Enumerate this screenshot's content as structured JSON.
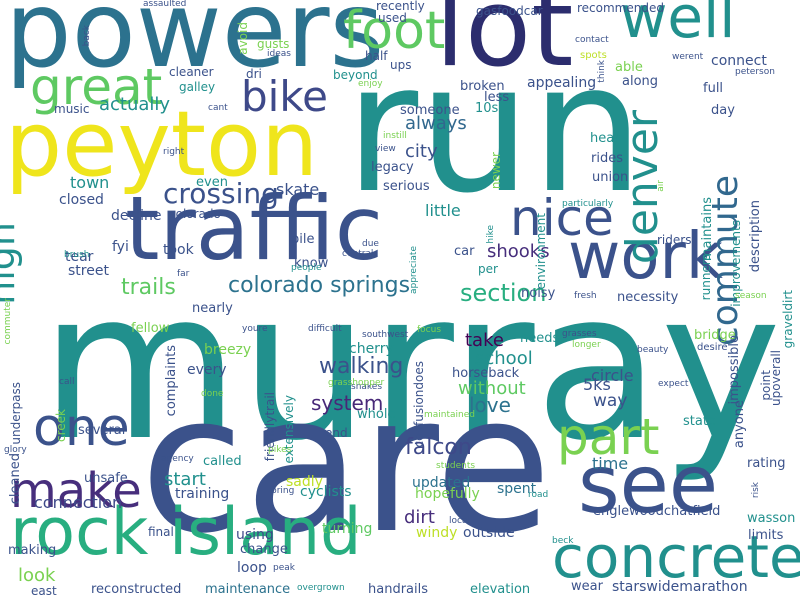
{
  "words": [
    {
      "text": "murray",
      "color": "#21908d"
    },
    {
      "text": "care",
      "color": "#3b528b"
    },
    {
      "text": "run",
      "color": "#21908d"
    },
    {
      "text": "lot",
      "color": "#2c2d6e"
    },
    {
      "text": "powers",
      "color": "#2c728e"
    },
    {
      "text": "peyton",
      "color": "#efe51c"
    },
    {
      "text": "traffic",
      "color": "#3b528b"
    },
    {
      "text": "rock island",
      "color": "#28ae80"
    },
    {
      "text": "see",
      "color": "#3b528b"
    },
    {
      "text": "concrete",
      "color": "#21908d"
    },
    {
      "text": "work",
      "color": "#3b528b"
    },
    {
      "text": "well",
      "color": "#21908d"
    },
    {
      "text": "foot",
      "color": "#5ec962"
    },
    {
      "text": "part",
      "color": "#7ad151"
    },
    {
      "text": "make",
      "color": "#472e7c"
    },
    {
      "text": "one",
      "color": "#3b528b"
    },
    {
      "text": "nice",
      "color": "#3b528b"
    },
    {
      "text": "great",
      "color": "#5ec962"
    },
    {
      "text": "bike",
      "color": "#3e4989"
    },
    {
      "text": "denver",
      "color": "#21908d"
    },
    {
      "text": "commute",
      "color": "#31688e"
    },
    {
      "text": "high",
      "color": "#21908d"
    },
    {
      "text": "crossing",
      "color": "#3b528b"
    },
    {
      "text": "colorado springs",
      "color": "#2c728e"
    },
    {
      "text": "section",
      "color": "#28ae80"
    },
    {
      "text": "falcon",
      "color": "#3e4989"
    },
    {
      "text": "trails",
      "color": "#5ec962"
    },
    {
      "text": "walking",
      "color": "#3b528b"
    },
    {
      "text": "system",
      "color": "#482878"
    },
    {
      "text": "love",
      "color": "#2c728e"
    },
    {
      "text": "school",
      "color": "#21908d"
    },
    {
      "text": "take",
      "color": "#440154"
    },
    {
      "text": "without",
      "color": "#5ec962"
    },
    {
      "text": "start",
      "color": "#21908d"
    },
    {
      "text": "connection",
      "color": "#3e4989"
    },
    {
      "text": "dirt",
      "color": "#472e7c"
    },
    {
      "text": "shooks",
      "color": "#472e7c"
    },
    {
      "text": "city",
      "color": "#3b528b"
    },
    {
      "text": "always",
      "color": "#31688e"
    },
    {
      "text": "actually",
      "color": "#21908d"
    },
    {
      "text": "little",
      "color": "#21908d"
    },
    {
      "text": "look",
      "color": "#7ad151"
    },
    {
      "text": "way",
      "color": "#3b528b"
    },
    {
      "text": "time",
      "color": "#2c728e"
    },
    {
      "text": "skate",
      "color": "#3b528b"
    },
    {
      "text": "town",
      "color": "#21908d"
    },
    {
      "text": "cherry",
      "color": "#21908d"
    },
    {
      "text": "circle",
      "color": "#3b528b"
    },
    {
      "text": "5ks",
      "color": "#3b528b"
    },
    {
      "text": "windy",
      "color": "#bddf26"
    },
    {
      "text": "outside",
      "color": "#3b528b"
    },
    {
      "text": "loop",
      "color": "#3b528b"
    },
    {
      "text": "using",
      "color": "#3e4989"
    },
    {
      "text": "training",
      "color": "#3b528b"
    },
    {
      "text": "breezy",
      "color": "#7ad151"
    },
    {
      "text": "hopefully",
      "color": "#7ad151"
    },
    {
      "text": "spent",
      "color": "#2c728e"
    },
    {
      "text": "sadly",
      "color": "#bddf26"
    },
    {
      "text": "cyclists",
      "color": "#21908d"
    },
    {
      "text": "turning",
      "color": "#5ec962"
    },
    {
      "text": "updated",
      "color": "#2c728e"
    },
    {
      "text": "street",
      "color": "#3b528b"
    },
    {
      "text": "tear",
      "color": "#3b528b"
    },
    {
      "text": "took",
      "color": "#3b528b"
    },
    {
      "text": "fyi",
      "color": "#3b528b"
    },
    {
      "text": "decline",
      "color": "#3b528b"
    },
    {
      "text": "colorado",
      "color": "#3b528b"
    },
    {
      "text": "closed",
      "color": "#3b528b"
    },
    {
      "text": "even",
      "color": "#21908d"
    },
    {
      "text": "pile",
      "color": "#3b528b"
    },
    {
      "text": "know",
      "color": "#3b528b"
    },
    {
      "text": "nearly",
      "color": "#3b528b"
    },
    {
      "text": "every",
      "color": "#3b528b"
    },
    {
      "text": "complaints",
      "color": "#3b528b"
    },
    {
      "text": "fellow",
      "color": "#7ad151"
    },
    {
      "text": "several",
      "color": "#3b528b"
    },
    {
      "text": "unsafe",
      "color": "#3b528b"
    },
    {
      "text": "called",
      "color": "#21908d"
    },
    {
      "text": "cleaned",
      "color": "#3b528b"
    },
    {
      "text": "making",
      "color": "#3b528b"
    },
    {
      "text": "final",
      "color": "#3b528b"
    },
    {
      "text": "change",
      "color": "#3b528b"
    },
    {
      "text": "reconstructed",
      "color": "#3b528b"
    },
    {
      "text": "maintenance",
      "color": "#2c728e"
    },
    {
      "text": "handrails",
      "color": "#3b528b"
    },
    {
      "text": "elevation",
      "color": "#21908d"
    },
    {
      "text": "wear",
      "color": "#3b528b"
    },
    {
      "text": "starswidemarathon",
      "color": "#3b528b"
    },
    {
      "text": "englewoodchatfield",
      "color": "#3b528b"
    },
    {
      "text": "limits",
      "color": "#3b528b"
    },
    {
      "text": "wasson",
      "color": "#21908d"
    },
    {
      "text": "rating",
      "color": "#3b528b"
    },
    {
      "text": "state",
      "color": "#21908d"
    },
    {
      "text": "upoverall",
      "color": "#3b528b"
    },
    {
      "text": "point",
      "color": "#3b528b"
    },
    {
      "text": "impossible",
      "color": "#3b528b"
    },
    {
      "text": "anyone",
      "color": "#3b528b"
    },
    {
      "text": "bridge",
      "color": "#7ad151"
    },
    {
      "text": "necessity",
      "color": "#3b528b"
    },
    {
      "text": "riders",
      "color": "#3b528b"
    },
    {
      "text": "runners",
      "color": "#21908d"
    },
    {
      "text": "improvements",
      "color": "#21908d"
    },
    {
      "text": "description",
      "color": "#3b528b"
    },
    {
      "text": "maintains",
      "color": "#21908d"
    },
    {
      "text": "union",
      "color": "#3b528b"
    },
    {
      "text": "rides",
      "color": "#3b528b"
    },
    {
      "text": "hear",
      "color": "#21908d"
    },
    {
      "text": "day",
      "color": "#3b528b"
    },
    {
      "text": "full",
      "color": "#3b528b"
    },
    {
      "text": "connect",
      "color": "#3b528b"
    },
    {
      "text": "along",
      "color": "#3b528b"
    },
    {
      "text": "able",
      "color": "#7ad151"
    },
    {
      "text": "appealing",
      "color": "#3b528b"
    },
    {
      "text": "broken",
      "color": "#3b528b"
    },
    {
      "text": "less",
      "color": "#3b528b"
    },
    {
      "text": "10s",
      "color": "#21908d"
    },
    {
      "text": "newer",
      "color": "#7ad151"
    },
    {
      "text": "environment",
      "color": "#21908d"
    },
    {
      "text": "someone",
      "color": "#3b528b"
    },
    {
      "text": "legacy",
      "color": "#3b528b"
    },
    {
      "text": "serious",
      "color": "#3b528b"
    },
    {
      "text": "noisy",
      "color": "#3b528b"
    },
    {
      "text": "per",
      "color": "#21908d"
    },
    {
      "text": "car",
      "color": "#3b528b"
    },
    {
      "text": "needs",
      "color": "#21908d"
    },
    {
      "text": "horseback",
      "color": "#3b528b"
    },
    {
      "text": "confusiondoes",
      "color": "#3b528b"
    },
    {
      "text": "whole",
      "color": "#21908d"
    },
    {
      "text": "end",
      "color": "#3b528b"
    },
    {
      "text": "friendlytrail",
      "color": "#3b528b"
    },
    {
      "text": "extensively",
      "color": "#21908d"
    },
    {
      "text": "underpass",
      "color": "#3b528b"
    },
    {
      "text": "creek",
      "color": "#7ad151"
    },
    {
      "text": "recommended",
      "color": "#3b528b"
    },
    {
      "text": "recently",
      "color": "#3b528b"
    },
    {
      "text": "used",
      "color": "#3b528b"
    },
    {
      "text": "gasfoodcar",
      "color": "#3b528b"
    },
    {
      "text": "half",
      "color": "#3b528b"
    },
    {
      "text": "ups",
      "color": "#3b528b"
    },
    {
      "text": "beyond",
      "color": "#21908d"
    },
    {
      "text": "enjoy",
      "color": "#7ad151"
    },
    {
      "text": "cleaner",
      "color": "#3b528b"
    },
    {
      "text": "galley",
      "color": "#21908d"
    },
    {
      "text": "dri",
      "color": "#3b528b"
    },
    {
      "text": "gusts",
      "color": "#7ad151"
    },
    {
      "text": "ideas",
      "color": "#3b528b"
    },
    {
      "text": "music",
      "color": "#3b528b"
    },
    {
      "text": "cant",
      "color": "#3b528b"
    },
    {
      "text": "avoid",
      "color": "#7ad151"
    },
    {
      "text": "assaulted",
      "color": "#3b528b"
    },
    {
      "text": "back",
      "color": "#3b528b"
    },
    {
      "text": "contact",
      "color": "#3b528b"
    },
    {
      "text": "spots",
      "color": "#bddf26"
    },
    {
      "text": "think",
      "color": "#3b528b"
    },
    {
      "text": "werent",
      "color": "#3b528b"
    },
    {
      "text": "peterson",
      "color": "#3b528b"
    },
    {
      "text": "right",
      "color": "#3b528b"
    },
    {
      "text": "instill",
      "color": "#7ad151"
    },
    {
      "text": "view",
      "color": "#3b528b"
    },
    {
      "text": "particularly",
      "color": "#21908d"
    },
    {
      "text": "air",
      "color": "#7ad151"
    },
    {
      "text": "hike",
      "color": "#21908d"
    },
    {
      "text": "appreciate",
      "color": "#21908d"
    },
    {
      "text": "due",
      "color": "#3b528b"
    },
    {
      "text": "central",
      "color": "#3b528b"
    },
    {
      "text": "people",
      "color": "#21908d"
    },
    {
      "text": "far",
      "color": "#3b528b"
    },
    {
      "text": "brush",
      "color": "#21908d"
    },
    {
      "text": "commuter",
      "color": "#7ad151"
    },
    {
      "text": "difficult",
      "color": "#3b528b"
    },
    {
      "text": "focus",
      "color": "#7ad151"
    },
    {
      "text": "fresh",
      "color": "#3b528b"
    },
    {
      "text": "season",
      "color": "#7ad151"
    },
    {
      "text": "graveldirt",
      "color": "#21908d"
    },
    {
      "text": "desire",
      "color": "#3b528b"
    },
    {
      "text": "beauty",
      "color": "#3b528b"
    },
    {
      "text": "longer",
      "color": "#7ad151"
    },
    {
      "text": "grasses",
      "color": "#3b528b"
    },
    {
      "text": "southwest",
      "color": "#3b528b"
    },
    {
      "text": "youre",
      "color": "#3b528b"
    },
    {
      "text": "snakes",
      "color": "#3b528b"
    },
    {
      "text": "grasshopper",
      "color": "#7ad151"
    },
    {
      "text": "expect",
      "color": "#3b528b"
    },
    {
      "text": "maintained",
      "color": "#7ad151"
    },
    {
      "text": "risk",
      "color": "#3b528b"
    },
    {
      "text": "students",
      "color": "#7ad151"
    },
    {
      "text": "road",
      "color": "#21908d"
    },
    {
      "text": "local",
      "color": "#3b528b"
    },
    {
      "text": "beck",
      "color": "#21908d"
    },
    {
      "text": "overgrown",
      "color": "#21908d"
    },
    {
      "text": "peak",
      "color": "#3b528b"
    },
    {
      "text": "bring",
      "color": "#3b528b"
    },
    {
      "text": "pikes",
      "color": "#7ad151"
    },
    {
      "text": "agency",
      "color": "#3b528b"
    },
    {
      "text": "glory",
      "color": "#3b528b"
    },
    {
      "text": "done",
      "color": "#7ad151"
    },
    {
      "text": "call",
      "color": "#3b528b"
    },
    {
      "text": "east",
      "color": "#3b528b"
    }
  ]
}
